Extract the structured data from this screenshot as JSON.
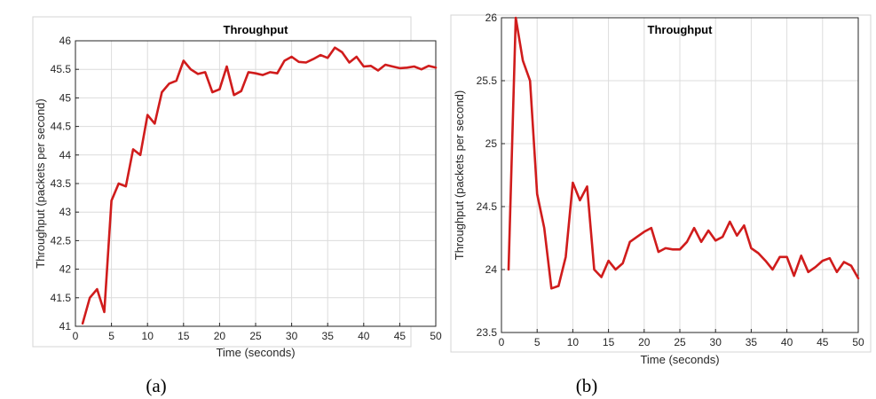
{
  "chart_data": [
    {
      "type": "line",
      "panel": "(a)",
      "title": "Throughput",
      "xlabel": "Time (seconds)",
      "ylabel": "Throughput (packets per second)",
      "xlim": [
        0,
        50
      ],
      "ylim": [
        41,
        46
      ],
      "xticks": [
        0,
        5,
        10,
        15,
        20,
        25,
        30,
        35,
        40,
        45,
        50
      ],
      "yticks": [
        41,
        41.5,
        42,
        42.5,
        43,
        43.5,
        44,
        44.5,
        45,
        45.5,
        46
      ],
      "grid": true,
      "line_color": "#d01c1c",
      "series": [
        {
          "x": [
            1,
            2,
            3,
            4,
            5,
            6,
            7,
            8,
            9,
            10,
            11,
            12,
            13,
            14,
            15,
            16,
            17,
            18,
            19,
            20,
            21,
            22,
            23,
            24,
            25,
            26,
            27,
            28,
            29,
            30,
            31,
            32,
            33,
            34,
            35,
            36,
            37,
            38,
            39,
            40,
            41,
            42,
            43,
            44,
            45,
            46,
            47,
            48,
            49,
            50
          ],
          "y": [
            41.05,
            41.5,
            41.65,
            41.25,
            43.2,
            43.5,
            43.45,
            44.1,
            44.0,
            44.7,
            44.55,
            45.1,
            45.25,
            45.3,
            45.65,
            45.5,
            45.42,
            45.45,
            45.1,
            45.15,
            45.55,
            45.05,
            45.12,
            45.45,
            45.43,
            45.4,
            45.45,
            45.43,
            45.65,
            45.72,
            45.63,
            45.62,
            45.68,
            45.75,
            45.7,
            45.88,
            45.8,
            45.62,
            45.72,
            45.55,
            45.56,
            45.48,
            45.58,
            45.55,
            45.52,
            45.53,
            45.55,
            45.5,
            45.56,
            45.53
          ]
        }
      ]
    },
    {
      "type": "line",
      "panel": "(b)",
      "title": "Throughput",
      "xlabel": "Time (seconds)",
      "ylabel": "Throughput (packets per second)",
      "xlim": [
        0,
        50
      ],
      "ylim": [
        23.5,
        26
      ],
      "xticks": [
        0,
        5,
        10,
        15,
        20,
        25,
        30,
        35,
        40,
        45,
        50
      ],
      "yticks": [
        23.5,
        24,
        24.5,
        25,
        25.5,
        26
      ],
      "grid": true,
      "line_color": "#d01c1c",
      "series": [
        {
          "x": [
            1,
            2,
            3,
            4,
            5,
            6,
            7,
            8,
            9,
            10,
            11,
            12,
            13,
            14,
            15,
            16,
            17,
            18,
            19,
            20,
            21,
            22,
            23,
            24,
            25,
            26,
            27,
            28,
            29,
            30,
            31,
            32,
            33,
            34,
            35,
            36,
            37,
            38,
            39,
            40,
            41,
            42,
            43,
            44,
            45,
            46,
            47,
            48,
            49,
            50
          ],
          "y": [
            24.0,
            26.0,
            25.66,
            25.5,
            24.6,
            24.33,
            23.85,
            23.87,
            24.1,
            24.69,
            24.55,
            24.66,
            24.0,
            23.94,
            24.07,
            24.0,
            24.05,
            24.22,
            24.26,
            24.3,
            24.33,
            24.14,
            24.17,
            24.16,
            24.16,
            24.22,
            24.33,
            24.22,
            24.31,
            24.23,
            24.26,
            24.38,
            24.27,
            24.35,
            24.17,
            24.13,
            24.07,
            24.0,
            24.1,
            24.1,
            23.95,
            24.11,
            23.98,
            24.02,
            24.07,
            24.09,
            23.98,
            24.06,
            24.03,
            23.93
          ]
        }
      ]
    }
  ]
}
